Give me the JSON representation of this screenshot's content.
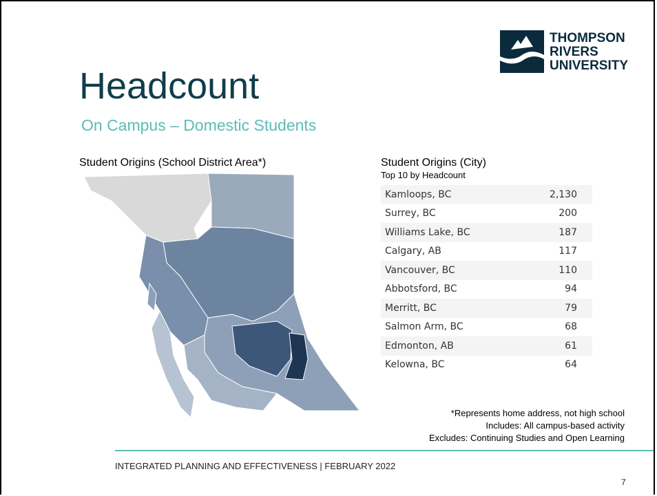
{
  "header": {
    "title": "Headcount",
    "subtitle": "On Campus – Domestic Students"
  },
  "logo": [
    "THOMPSON",
    "RIVERS",
    "UNIVERSITY"
  ],
  "map": {
    "title": "Student Origins (School District Area*)"
  },
  "table": {
    "title": "Student Origins (City)",
    "subtitle": "Top 10 by Headcount",
    "rows": [
      [
        "Kamloops, BC",
        "2,130"
      ],
      [
        "Surrey, BC",
        "200"
      ],
      [
        "Williams Lake, BC",
        "187"
      ],
      [
        "Calgary, AB",
        "117"
      ],
      [
        "Vancouver, BC",
        "110"
      ],
      [
        "Abbotsford, BC",
        "94"
      ],
      [
        "Merritt, BC",
        "79"
      ],
      [
        "Salmon Arm, BC",
        "68"
      ],
      [
        "Edmonton, AB",
        "61"
      ],
      [
        "Kelowna, BC",
        "64"
      ]
    ]
  },
  "notes": [
    "*Represents home address, not high school",
    "Includes: All campus-based activity",
    "Excludes: Continuing Studies and Open Learning"
  ],
  "footer": {
    "text": "INTEGRATED PLANNING AND EFFECTIVENESS | FEBRUARY 2022",
    "page": "7"
  }
}
